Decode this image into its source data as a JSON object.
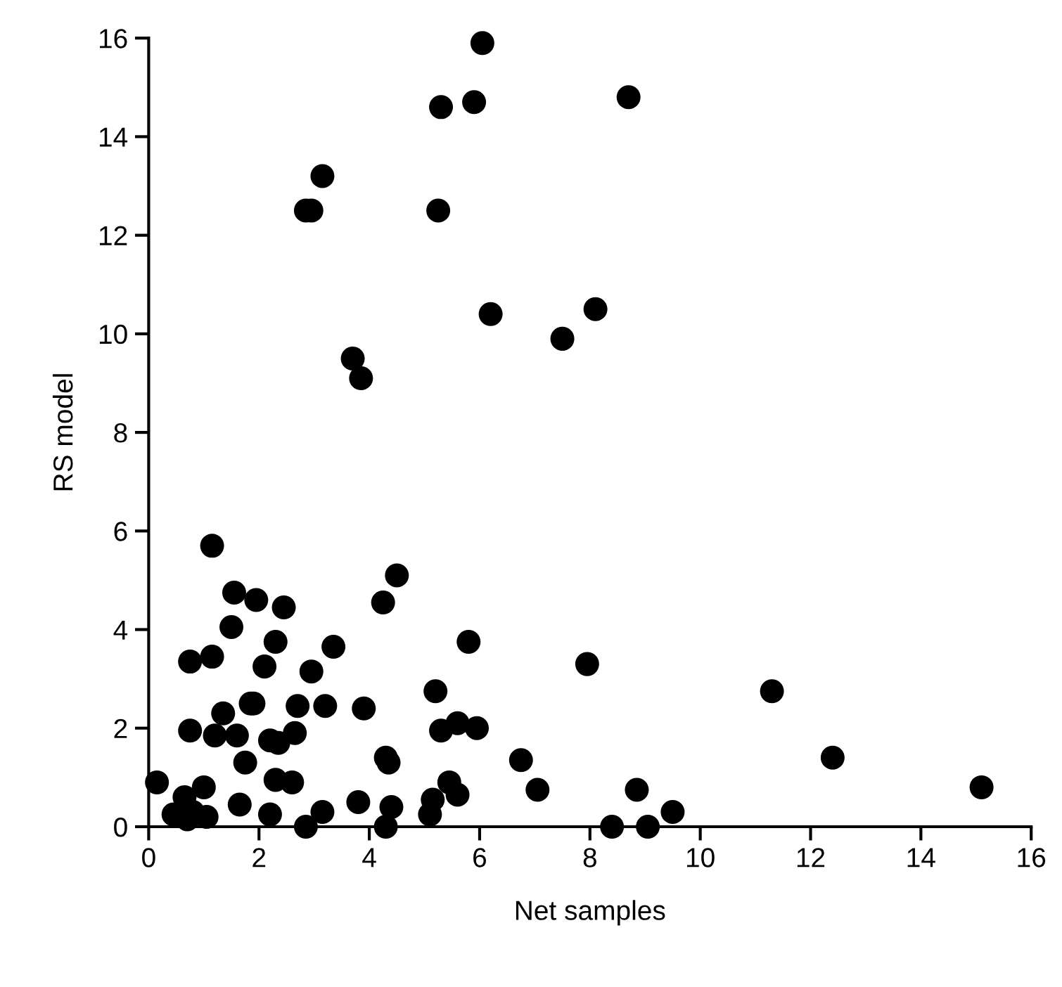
{
  "chart_data": {
    "type": "scatter",
    "xlabel": "Net samples",
    "ylabel": "RS model",
    "xlim": [
      0,
      16
    ],
    "ylim": [
      0,
      16
    ],
    "xticks": [
      0,
      2,
      4,
      6,
      8,
      10,
      12,
      14,
      16
    ],
    "yticks": [
      0,
      2,
      4,
      6,
      8,
      10,
      12,
      14,
      16
    ],
    "grid": false,
    "marker": "circle",
    "series": [
      {
        "color": "#000000",
        "x": [
          6.05,
          5.3,
          5.9,
          8.7,
          3.15,
          2.85,
          2.95,
          5.25,
          6.2,
          8.1,
          7.5,
          3.7,
          3.85,
          1.15,
          1.55,
          1.95,
          2.45,
          1.5,
          2.3,
          0.75,
          1.15,
          3.35,
          2.1,
          2.95,
          4.25,
          4.5,
          5.8,
          7.95,
          11.3,
          5.2,
          1.85,
          1.9,
          2.7,
          3.2,
          3.9,
          1.35,
          0.75,
          1.2,
          1.6,
          2.2,
          2.35,
          2.65,
          5.3,
          5.6,
          5.95,
          1.75,
          4.3,
          4.35,
          6.75,
          12.4,
          1.65,
          2.3,
          2.6,
          0.15,
          0.65,
          1.0,
          0.45,
          0.7,
          0.8,
          1.05,
          2.2,
          3.15,
          3.8,
          4.3,
          4.4,
          5.1,
          5.15,
          5.45,
          5.6,
          7.05,
          2.85,
          8.4,
          8.85,
          9.05,
          9.5,
          15.1
        ],
        "values": [
          15.9,
          14.6,
          14.7,
          14.8,
          13.2,
          12.5,
          12.5,
          12.5,
          10.4,
          10.5,
          9.9,
          9.5,
          9.1,
          5.7,
          4.75,
          4.6,
          4.45,
          4.05,
          3.75,
          3.35,
          3.45,
          3.65,
          3.25,
          3.15,
          4.55,
          5.1,
          3.75,
          3.3,
          2.75,
          2.75,
          2.5,
          2.5,
          2.45,
          2.45,
          2.4,
          2.3,
          1.95,
          1.85,
          1.85,
          1.75,
          1.7,
          1.9,
          1.95,
          2.1,
          2.0,
          1.3,
          1.4,
          1.3,
          1.35,
          1.4,
          0.45,
          0.95,
          0.9,
          0.9,
          0.6,
          0.8,
          0.25,
          0.15,
          0.3,
          0.2,
          0.25,
          0.3,
          0.5,
          0.0,
          0.4,
          0.25,
          0.55,
          0.9,
          0.65,
          0.75,
          0.0,
          0.0,
          0.75,
          0.0,
          0.3,
          0.8
        ]
      }
    ]
  }
}
